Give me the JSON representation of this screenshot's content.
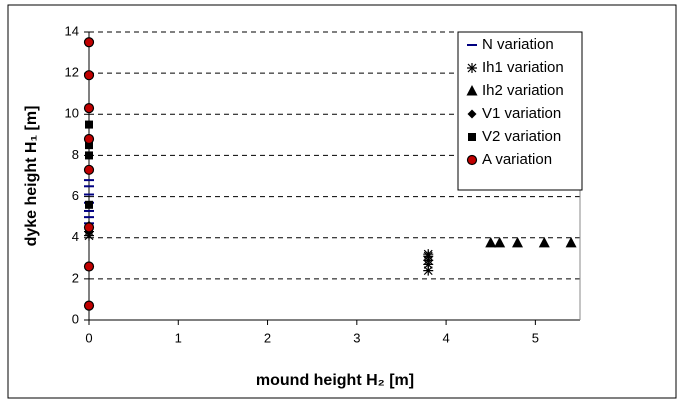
{
  "chart_data": {
    "type": "scatter",
    "xlabel": "mound height H₂ [m]",
    "ylabel": "dyke height H₁ [m]",
    "xlim": [
      0,
      5.5
    ],
    "xticks": [
      0,
      1,
      2,
      3,
      4,
      5
    ],
    "ylim": [
      0,
      14
    ],
    "yticks": [
      0,
      2,
      4,
      6,
      8,
      10,
      12,
      14
    ],
    "grid": true,
    "legend": "upper right",
    "series": [
      {
        "name": "N variation",
        "color": "#000080",
        "marker": "dash",
        "x": [
          0,
          0,
          0,
          0,
          0,
          0,
          0
        ],
        "y": [
          4.7,
          5.0,
          5.3,
          5.7,
          6.1,
          6.5,
          6.8
        ]
      },
      {
        "name": "Ih1 variation",
        "color": "#000000",
        "marker": "asterisk",
        "x": [
          0,
          0,
          3.8,
          3.8,
          3.8,
          3.8,
          3.8
        ],
        "y": [
          4.1,
          4.3,
          2.4,
          2.7,
          2.9,
          3.1,
          3.2
        ]
      },
      {
        "name": "Ih2 variation",
        "color": "#000000",
        "marker": "triangle",
        "x": [
          4.5,
          4.6,
          4.8,
          5.1,
          5.4
        ],
        "y": [
          3.75,
          3.75,
          3.75,
          3.75,
          3.75
        ]
      },
      {
        "name": "V1 variation",
        "color": "#000000",
        "marker": "diamond",
        "x": [
          0,
          0,
          0
        ],
        "y": [
          4.3,
          4.5,
          4.6
        ]
      },
      {
        "name": "V2 variation",
        "color": "#000000",
        "marker": "square",
        "x": [
          0,
          0,
          0,
          0,
          0
        ],
        "y": [
          4.4,
          5.6,
          8.0,
          8.5,
          9.5
        ]
      },
      {
        "name": "A variation",
        "color": "#c00000",
        "edgecolor": "#000000",
        "marker": "circle",
        "x": [
          0,
          0,
          0,
          0,
          0,
          0,
          0,
          0
        ],
        "y": [
          0.7,
          2.6,
          4.5,
          7.3,
          8.8,
          10.3,
          11.9,
          13.5
        ]
      }
    ]
  }
}
